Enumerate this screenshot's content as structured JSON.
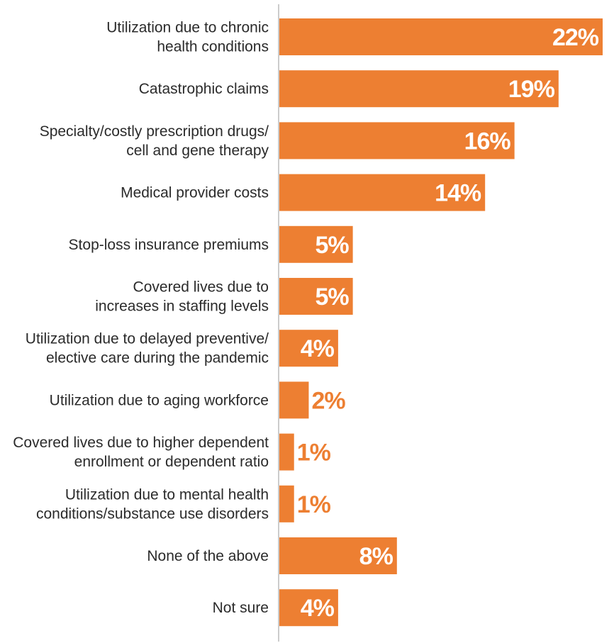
{
  "chart_data": {
    "type": "bar",
    "orientation": "horizontal",
    "categories": [
      [
        "Utilization due to chronic",
        "health conditions"
      ],
      [
        "Catastrophic claims"
      ],
      [
        "Specialty/costly prescription drugs/",
        "cell and gene therapy"
      ],
      [
        "Medical provider costs"
      ],
      [
        "Stop-loss insurance premiums"
      ],
      [
        "Covered lives due to",
        "increases in staffing levels"
      ],
      [
        "Utilization due to delayed preventive/",
        "elective care during the pandemic"
      ],
      [
        "Utilization due to aging workforce"
      ],
      [
        "Covered lives due to higher dependent",
        "enrollment or dependent ratio"
      ],
      [
        "Utilization due to mental health",
        "conditions/substance use disorders"
      ],
      [
        "None of the above"
      ],
      [
        "Not sure"
      ]
    ],
    "values": [
      22,
      19,
      16,
      14,
      5,
      5,
      4,
      2,
      1,
      1,
      8,
      4
    ],
    "value_labels": [
      "22%",
      "19%",
      "16%",
      "14%",
      "5%",
      "5%",
      "4%",
      "2%",
      "1%",
      "1%",
      "8%",
      "4%"
    ],
    "xlim": [
      0,
      22
    ],
    "grid": false,
    "colors": {
      "bar": "#ED7F32",
      "label_inside": "#FFFFFF",
      "label_outside": "#ED7F32",
      "axis": "#CCCCCC",
      "text": "#2B2B2B"
    }
  }
}
